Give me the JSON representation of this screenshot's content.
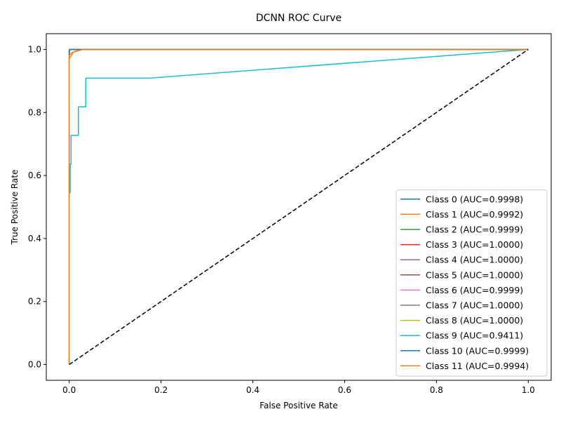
{
  "chart_data": {
    "type": "line",
    "title": "DCNN ROC Curve",
    "xlabel": "False Positive Rate",
    "ylabel": "True Positive Rate",
    "xlim": [
      -0.05,
      1.05
    ],
    "ylim": [
      -0.05,
      1.05
    ],
    "xticks": [
      0.0,
      0.2,
      0.4,
      0.6,
      0.8,
      1.0
    ],
    "yticks": [
      0.0,
      0.2,
      0.4,
      0.6,
      0.8,
      1.0
    ],
    "xtick_labels": [
      "0.0",
      "0.2",
      "0.4",
      "0.6",
      "0.8",
      "1.0"
    ],
    "ytick_labels": [
      "0.0",
      "0.2",
      "0.4",
      "0.6",
      "0.8",
      "1.0"
    ],
    "grid": false,
    "legend_position": "lower-right",
    "diagonal": {
      "x": [
        0,
        1
      ],
      "y": [
        0,
        1
      ],
      "color": "#000000",
      "style": "dashed"
    },
    "series": [
      {
        "name": "Class 0 (AUC=0.9998)",
        "color": "#1f77b4",
        "x": [
          0,
          0,
          0.001,
          1
        ],
        "y": [
          0,
          0.98,
          1,
          1
        ]
      },
      {
        "name": "Class 1 (AUC=0.9992)",
        "color": "#ff7f0e",
        "x": [
          0,
          0,
          0.002,
          0.005,
          0.008,
          0.012,
          0.02,
          0.03,
          1
        ],
        "y": [
          0,
          0.97,
          0.975,
          0.98,
          0.99,
          0.993,
          0.996,
          1,
          1
        ]
      },
      {
        "name": "Class 2 (AUC=0.9999)",
        "color": "#2ca02c",
        "x": [
          0,
          0,
          0.001,
          1
        ],
        "y": [
          0,
          0.99,
          1,
          1
        ]
      },
      {
        "name": "Class 3 (AUC=1.0000)",
        "color": "#d62728",
        "x": [
          0,
          0,
          1
        ],
        "y": [
          0,
          1,
          1
        ]
      },
      {
        "name": "Class 4 (AUC=1.0000)",
        "color": "#9467bd",
        "x": [
          0,
          0,
          1
        ],
        "y": [
          0,
          1,
          1
        ]
      },
      {
        "name": "Class 5 (AUC=1.0000)",
        "color": "#8c564b",
        "x": [
          0,
          0,
          1
        ],
        "y": [
          0,
          1,
          1
        ]
      },
      {
        "name": "Class 6 (AUC=0.9999)",
        "color": "#e377c2",
        "x": [
          0,
          0,
          0.001,
          1
        ],
        "y": [
          0,
          0.99,
          1,
          1
        ]
      },
      {
        "name": "Class 7 (AUC=1.0000)",
        "color": "#7f7f7f",
        "x": [
          0,
          0,
          1
        ],
        "y": [
          0,
          1,
          1
        ]
      },
      {
        "name": "Class 8 (AUC=1.0000)",
        "color": "#bcbd22",
        "x": [
          0,
          0,
          1
        ],
        "y": [
          0,
          1,
          1
        ]
      },
      {
        "name": "Class 9 (AUC=0.9411)",
        "color": "#17becf",
        "x": [
          0,
          0,
          0.002,
          0.002,
          0.004,
          0.004,
          0.02,
          0.02,
          0.036,
          0.036,
          0.175,
          1
        ],
        "y": [
          0,
          0.545,
          0.545,
          0.636,
          0.636,
          0.727,
          0.727,
          0.818,
          0.818,
          0.909,
          0.909,
          1
        ]
      },
      {
        "name": "Class 10 (AUC=0.9999)",
        "color": "#1f77b4",
        "x": [
          0,
          0,
          0.001,
          1
        ],
        "y": [
          0,
          0.99,
          1,
          1
        ]
      },
      {
        "name": "Class 11 (AUC=0.9994)",
        "color": "#ff7f0e",
        "x": [
          0,
          0,
          0.003,
          0.006,
          0.015,
          0.03,
          1
        ],
        "y": [
          0,
          0.98,
          0.985,
          0.99,
          0.995,
          1,
          1
        ]
      }
    ]
  }
}
